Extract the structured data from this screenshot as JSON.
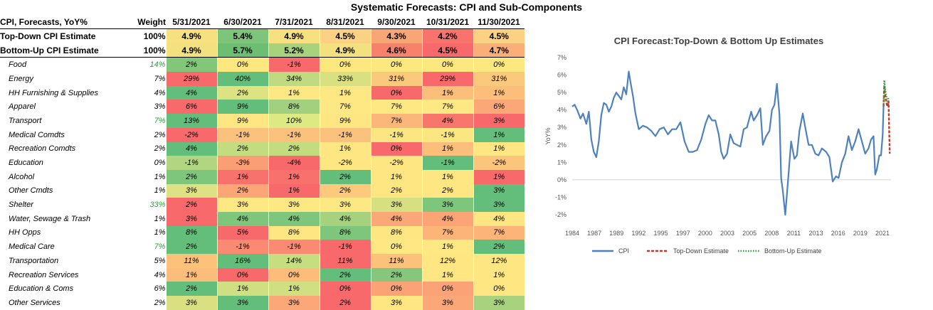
{
  "title": "Systematic Forecasts: CPI and Sub-Components",
  "table": {
    "header": {
      "label": "CPI, Forecasts, YoY%",
      "weight": "Weight",
      "dates": [
        "5/31/2021",
        "6/30/2021",
        "7/31/2021",
        "8/31/2021",
        "9/30/2021",
        "10/31/2021",
        "11/30/2021"
      ]
    },
    "top_rows": [
      {
        "label": "Top-Down CPI Estimate",
        "weight": "100%",
        "values": [
          "4.9%",
          "5.4%",
          "4.9%",
          "4.5%",
          "4.3%",
          "4.2%",
          "4.5%"
        ],
        "colors": [
          "#f7e080",
          "#7ec47a",
          "#f7e080",
          "#fbd283",
          "#f8a676",
          "#f8736b",
          "#fbd283"
        ]
      },
      {
        "label": "Bottom-Up CPI Estimate",
        "weight": "100%",
        "values": [
          "4.9%",
          "5.7%",
          "5.2%",
          "4.9%",
          "4.6%",
          "4.5%",
          "4.7%"
        ],
        "colors": [
          "#f3e07f",
          "#6cbe72",
          "#a8d27c",
          "#f3e07f",
          "#f8816c",
          "#f8696b",
          "#fbaf78"
        ]
      }
    ],
    "rows": [
      {
        "label": "Food",
        "weight": "14%",
        "weight_green": true,
        "values": [
          "2%",
          "0%",
          "-1%",
          "0%",
          "0%",
          "0%",
          "0%"
        ],
        "colors": [
          "#81c679",
          "#fde77f",
          "#f8696b",
          "#fde77f",
          "#fde77f",
          "#fde77f",
          "#fde77f"
        ]
      },
      {
        "label": "Energy",
        "weight": "7%",
        "weight_green": false,
        "values": [
          "29%",
          "40%",
          "34%",
          "33%",
          "31%",
          "29%",
          "31%"
        ],
        "colors": [
          "#f8696b",
          "#63be7b",
          "#bfda80",
          "#d9e082",
          "#fbc97c",
          "#f8696b",
          "#fbc97c"
        ]
      },
      {
        "label": "HH Furnishing & Supplies",
        "weight": "4%",
        "weight_green": false,
        "values": [
          "4%",
          "2%",
          "1%",
          "1%",
          "0%",
          "1%",
          "1%"
        ],
        "colors": [
          "#63be7b",
          "#dde282",
          "#fde884",
          "#fde884",
          "#f8696b",
          "#fcbf7b",
          "#fcbf7b"
        ]
      },
      {
        "label": "Apparel",
        "weight": "3%",
        "weight_green": false,
        "values": [
          "6%",
          "9%",
          "8%",
          "7%",
          "7%",
          "7%",
          "6%"
        ],
        "colors": [
          "#f8696b",
          "#63be7b",
          "#a2d07f",
          "#fde884",
          "#fde884",
          "#fde884",
          "#fba777"
        ]
      },
      {
        "label": "Transport",
        "weight": "7%",
        "weight_green": true,
        "values": [
          "13%",
          "9%",
          "10%",
          "9%",
          "7%",
          "4%",
          "3%"
        ],
        "colors": [
          "#63be7b",
          "#fee683",
          "#ddea84",
          "#fee683",
          "#fbb77a",
          "#f8776d",
          "#f8696b"
        ]
      },
      {
        "label": "Medical Comdts",
        "weight": "2%",
        "weight_green": false,
        "values": [
          "-2%",
          "-1%",
          "-1%",
          "-1%",
          "-1%",
          "-1%",
          "1%"
        ],
        "colors": [
          "#f8696b",
          "#fbc27d",
          "#fbc27d",
          "#fbc27d",
          "#fbe682",
          "#fbe682",
          "#63be7b"
        ]
      },
      {
        "label": "Recreation Comdts",
        "weight": "2%",
        "weight_green": false,
        "values": [
          "4%",
          "2%",
          "2%",
          "1%",
          "0%",
          "1%",
          "1%"
        ],
        "colors": [
          "#63be7b",
          "#c3dc80",
          "#c3dc80",
          "#fee683",
          "#f8696b",
          "#fcbf7b",
          "#fee683"
        ]
      },
      {
        "label": "Education",
        "weight": "0%",
        "weight_green": false,
        "values": [
          "-1%",
          "-3%",
          "-4%",
          "-2%",
          "-2%",
          "-1%",
          "-2%"
        ],
        "colors": [
          "#b1d580",
          "#fa9f75",
          "#f8696b",
          "#fee683",
          "#fee683",
          "#63be7b",
          "#fcc57c"
        ]
      },
      {
        "label": "Alcohol",
        "weight": "1%",
        "weight_green": false,
        "values": [
          "2%",
          "1%",
          "1%",
          "2%",
          "1%",
          "1%",
          "1%"
        ],
        "colors": [
          "#7fc67d",
          "#f8716c",
          "#f8716c",
          "#63be7b",
          "#fee683",
          "#fee683",
          "#f8696b"
        ]
      },
      {
        "label": "Other Cmdts",
        "weight": "1%",
        "weight_green": false,
        "values": [
          "3%",
          "2%",
          "1%",
          "2%",
          "2%",
          "2%",
          "3%"
        ],
        "colors": [
          "#dee283",
          "#fba676",
          "#f8696b",
          "#fdc97d",
          "#fee683",
          "#fee683",
          "#63be7b"
        ]
      },
      {
        "label": "Shelter",
        "weight": "33%",
        "weight_green": true,
        "values": [
          "2%",
          "3%",
          "3%",
          "3%",
          "3%",
          "3%",
          "3%"
        ],
        "colors": [
          "#f8696b",
          "#fde884",
          "#fde884",
          "#fde884",
          "#d6e082",
          "#7fc67d",
          "#63be7b"
        ]
      },
      {
        "label": "Water, Sewage & Trash",
        "weight": "1%",
        "weight_green": false,
        "values": [
          "3%",
          "4%",
          "4%",
          "4%",
          "4%",
          "4%",
          "4%"
        ],
        "colors": [
          "#f8696b",
          "#7ec67c",
          "#7ec67c",
          "#a6d27f",
          "#fca777",
          "#fba577",
          "#fee683"
        ]
      },
      {
        "label": "HH Opps",
        "weight": "1%",
        "weight_green": false,
        "values": [
          "8%",
          "5%",
          "8%",
          "8%",
          "8%",
          "7%",
          "7%"
        ],
        "colors": [
          "#63be7b",
          "#f8696b",
          "#fee683",
          "#7ec67c",
          "#fee683",
          "#fcb479",
          "#fcb479"
        ]
      },
      {
        "label": "Medical Care",
        "weight": "7%",
        "weight_green": true,
        "values": [
          "2%",
          "-1%",
          "-1%",
          "-1%",
          "0%",
          "1%",
          "2%"
        ],
        "colors": [
          "#63be7b",
          "#fa8b72",
          "#fa8b72",
          "#f8696b",
          "#fde884",
          "#fde884",
          "#63be7b"
        ]
      },
      {
        "label": "Transportation",
        "weight": "5%",
        "weight_green": false,
        "values": [
          "11%",
          "16%",
          "14%",
          "11%",
          "11%",
          "12%",
          "12%"
        ],
        "colors": [
          "#fcc27c",
          "#63be7b",
          "#c6dd80",
          "#f8696b",
          "#fcc27c",
          "#fee683",
          "#fee683"
        ]
      },
      {
        "label": "Recreation Services",
        "weight": "4%",
        "weight_green": false,
        "values": [
          "1%",
          "0%",
          "0%",
          "2%",
          "2%",
          "1%",
          "1%"
        ],
        "colors": [
          "#fcbd7b",
          "#f8696b",
          "#fcbd7b",
          "#63be7b",
          "#86c77d",
          "#fee683",
          "#fee683"
        ]
      },
      {
        "label": "Education & Coms",
        "weight": "6%",
        "weight_green": false,
        "values": [
          "2%",
          "1%",
          "1%",
          "0%",
          "0%",
          "0%",
          "0%"
        ],
        "colors": [
          "#63be7b",
          "#cfdf81",
          "#cfdf81",
          "#f8696b",
          "#fba376",
          "#fba376",
          "#fee683"
        ]
      },
      {
        "label": "Other Services",
        "weight": "2%",
        "weight_green": false,
        "values": [
          "3%",
          "3%",
          "3%",
          "2%",
          "3%",
          "3%",
          "3%"
        ],
        "colors": [
          "#d8e082",
          "#63be7b",
          "#fba777",
          "#f8696b",
          "#fee683",
          "#fba777",
          "#a9d27f"
        ]
      }
    ]
  },
  "chart_data": {
    "type": "line",
    "title": "CPI Forecast:Top-Down & Bottom Up Estimates",
    "ylabel": "YoY%",
    "xlabel": "",
    "ylim": [
      -2,
      7
    ],
    "yticks": [
      "-2%",
      "-1%",
      "0%",
      "1%",
      "2%",
      "3%",
      "4%",
      "5%",
      "6%",
      "7%"
    ],
    "xlim": [
      1984,
      2022.3
    ],
    "xticks": [
      "1984",
      "1987",
      "1989",
      "1992",
      "1995",
      "1997",
      "2000",
      "2003",
      "2005",
      "2008",
      "2011",
      "2013",
      "2016",
      "2019",
      "2021"
    ],
    "grid": false,
    "legend_position": "bottom",
    "series": [
      {
        "name": "CPI",
        "color": "#4f81bd",
        "style": "solid",
        "x": [
          1984.0,
          1984.3,
          1984.6,
          1985.0,
          1985.3,
          1985.7,
          1986.0,
          1986.3,
          1986.6,
          1986.9,
          1987.2,
          1987.5,
          1987.8,
          1988.1,
          1988.4,
          1988.7,
          1989.0,
          1989.3,
          1989.6,
          1989.9,
          1990.2,
          1990.5,
          1990.8,
          1991.0,
          1991.3,
          1991.6,
          1992.0,
          1992.5,
          1993.0,
          1993.5,
          1994.0,
          1994.5,
          1995.0,
          1995.5,
          1996.0,
          1996.5,
          1997.0,
          1997.5,
          1998.0,
          1998.5,
          1999.0,
          1999.5,
          2000.0,
          2000.4,
          2000.8,
          2001.2,
          2001.6,
          2001.9,
          2002.2,
          2002.6,
          2003.0,
          2003.4,
          2003.8,
          2004.2,
          2004.6,
          2005.0,
          2005.5,
          2005.8,
          2006.2,
          2006.6,
          2006.9,
          2007.3,
          2007.7,
          2008.0,
          2008.3,
          2008.6,
          2008.9,
          2009.1,
          2009.3,
          2009.6,
          2009.9,
          2010.3,
          2010.7,
          2011.0,
          2011.3,
          2011.7,
          2012.0,
          2012.4,
          2012.8,
          2013.2,
          2013.6,
          2014.0,
          2014.5,
          2014.9,
          2015.3,
          2015.7,
          2016.0,
          2016.4,
          2016.8,
          2017.2,
          2017.6,
          2018.0,
          2018.4,
          2018.8,
          2019.2,
          2019.6,
          2019.9,
          2020.2,
          2020.4,
          2020.6,
          2020.9,
          2021.1,
          2021.3,
          2021.4
        ],
        "y": [
          4.2,
          4.3,
          4.0,
          3.5,
          3.8,
          3.2,
          3.9,
          2.3,
          1.6,
          1.3,
          2.2,
          3.7,
          4.4,
          4.3,
          3.9,
          4.2,
          4.7,
          5.0,
          4.8,
          4.6,
          5.3,
          4.9,
          6.2,
          5.6,
          4.8,
          3.8,
          2.9,
          3.1,
          3.0,
          2.8,
          2.5,
          2.9,
          3.0,
          2.6,
          2.9,
          2.9,
          3.3,
          2.2,
          1.6,
          1.6,
          1.7,
          2.3,
          3.2,
          3.7,
          3.4,
          3.4,
          2.6,
          1.6,
          1.2,
          1.5,
          2.6,
          2.1,
          2.0,
          1.9,
          2.9,
          3.0,
          3.9,
          3.4,
          3.7,
          4.1,
          2.0,
          2.5,
          2.8,
          4.0,
          4.3,
          5.5,
          3.7,
          0.1,
          -0.6,
          -2.0,
          -0.2,
          2.2,
          1.2,
          1.4,
          2.8,
          3.8,
          3.0,
          2.0,
          2.0,
          1.5,
          1.4,
          1.8,
          1.6,
          1.3,
          -0.1,
          0.2,
          0.1,
          1.0,
          1.5,
          2.5,
          1.7,
          2.2,
          2.9,
          2.2,
          1.5,
          1.8,
          2.3,
          2.5,
          0.3,
          0.6,
          1.4,
          1.4,
          2.6,
          4.2
        ]
      },
      {
        "name": "Top-Down Estimate",
        "color": "#c0392b",
        "style": "dashed",
        "x": [
          2021.4,
          2021.5,
          2021.6,
          2021.7,
          2021.8,
          2021.9,
          2022.0,
          2022.15
        ],
        "y": [
          4.2,
          5.4,
          4.9,
          4.5,
          4.3,
          4.2,
          4.5,
          1.5
        ]
      },
      {
        "name": "Bottom-Up Estimate",
        "color": "#2e9e3e",
        "style": "dotted",
        "x": [
          2021.4,
          2021.5,
          2021.6,
          2021.7,
          2021.8,
          2021.9,
          2022.0
        ],
        "y": [
          4.2,
          5.7,
          5.2,
          4.9,
          4.6,
          4.5,
          4.7
        ]
      }
    ]
  }
}
